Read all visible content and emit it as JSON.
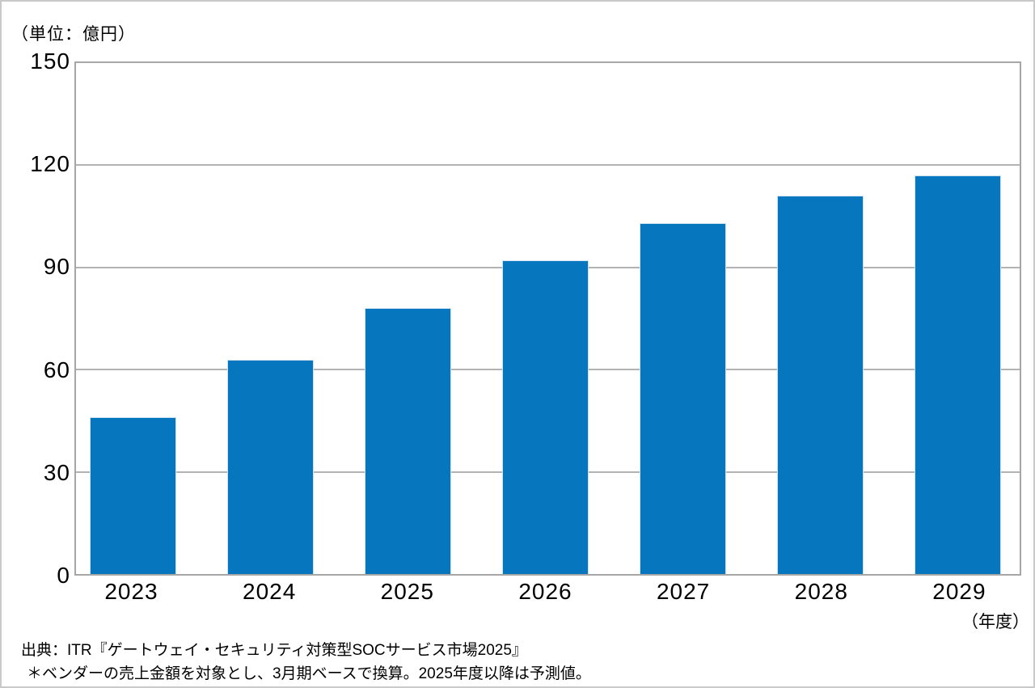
{
  "page": {
    "source_line": "出典：ITR『ゲートウェイ・セキュリティ対策型SOCサービス市場2025』",
    "note_line": "＊ベンダーの売上金額を対象とし、3月期ベースで換算。2025年度以降は予測値。"
  },
  "colors": {
    "bar": "#0677BE",
    "bar_border": "#cfe2f1",
    "gridline": "#b3b3b3",
    "frame": "#a6a6a6",
    "page_border": "#c9c9c9",
    "text": "#000000"
  },
  "chart_data": {
    "type": "bar",
    "categories": [
      "2023",
      "2024",
      "2025",
      "2026",
      "2027",
      "2028",
      "2029"
    ],
    "values": [
      46,
      63,
      78,
      92,
      103,
      111,
      117
    ],
    "title": "",
    "xlabel": "（年度）",
    "ylabel": "（単位：億円）",
    "ylim": [
      0,
      150
    ],
    "yticks": [
      0,
      30,
      60,
      90,
      120,
      150
    ],
    "grid": true,
    "legend_position": "none"
  }
}
